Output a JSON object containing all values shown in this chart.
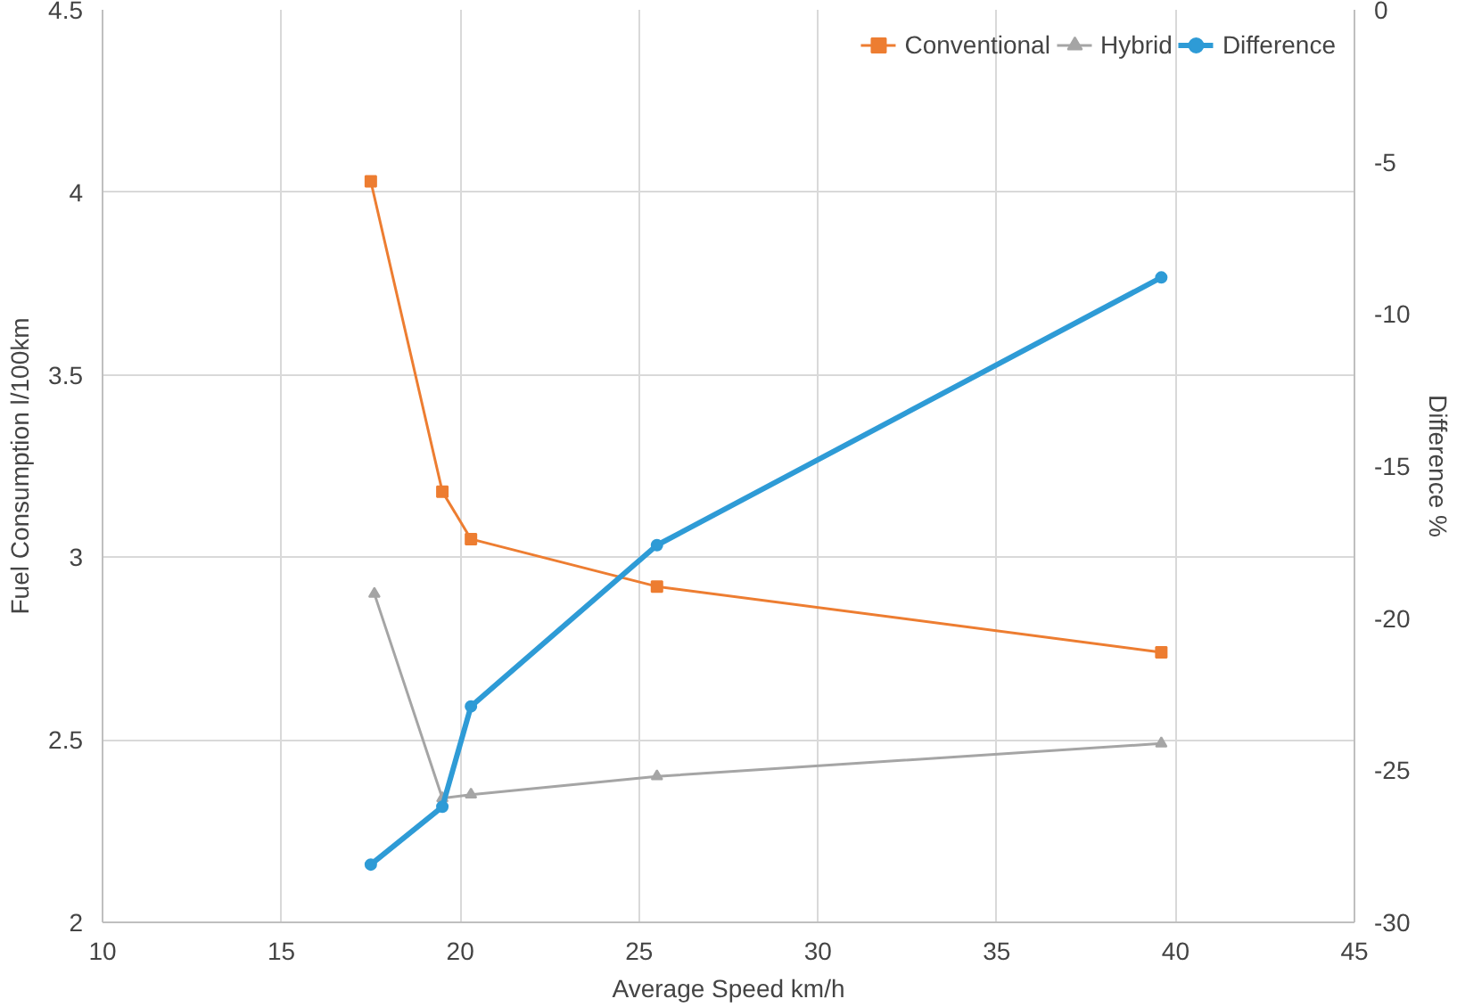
{
  "chart_data": {
    "type": "line",
    "xlabel": "Average Speed km/h",
    "ylabel": "Fuel Consumption l/100km",
    "y2label": "Difference %",
    "xlim": [
      10,
      45
    ],
    "xticks": [
      10,
      15,
      20,
      25,
      30,
      35,
      40,
      45
    ],
    "ylim": [
      2,
      4.5
    ],
    "yticks": [
      2,
      2.5,
      3,
      3.5,
      4,
      4.5
    ],
    "y2lim": [
      -30,
      0
    ],
    "y2ticks": [
      -30,
      -25,
      -20,
      -15,
      -10,
      -5,
      0
    ],
    "grid": true,
    "legend": "top right",
    "line_style": "solid",
    "series": [
      {
        "name": "Conventional",
        "color": "#ed7d31",
        "marker": "square",
        "x": [
          17.5,
          19.5,
          20.3,
          25.5,
          39.6
        ],
        "values": [
          4.03,
          3.18,
          3.05,
          2.92,
          2.74
        ]
      },
      {
        "name": "Hybrid",
        "color": "#a5a5a5",
        "marker": "triangle",
        "x": [
          17.6,
          19.5,
          20.3,
          25.5,
          39.6
        ],
        "values": [
          2.9,
          2.34,
          2.35,
          2.4,
          2.49
        ]
      },
      {
        "name": "Difference",
        "color": "#2e9bd6",
        "marker": "circle",
        "axis": "y2",
        "x": [
          17.5,
          19.5,
          20.3,
          25.5,
          39.6
        ],
        "values": [
          -28.1,
          -26.2,
          -22.9,
          -17.6,
          -8.8
        ]
      }
    ]
  }
}
